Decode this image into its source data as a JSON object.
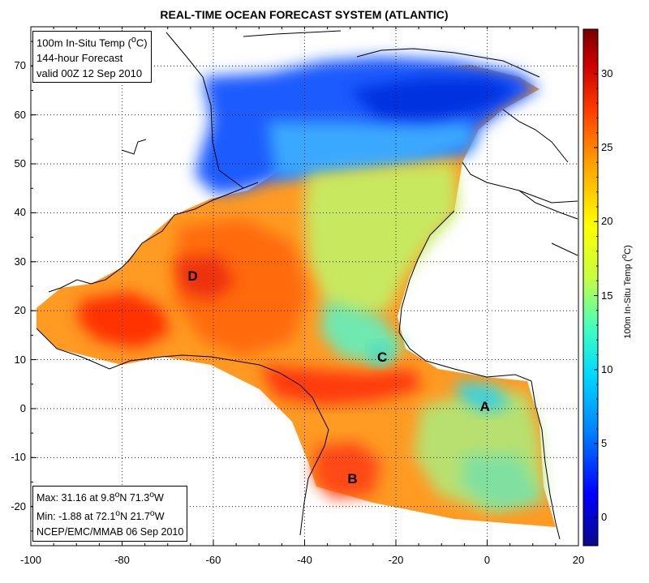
{
  "title": "REAL-TIME OCEAN FORECAST SYSTEM (ATLANTIC)",
  "info_top": {
    "line1_prefix": "100m In-Situ Temp (",
    "line1_sup": "o",
    "line1_suffix": "C)",
    "line2": "144-hour Forecast",
    "line3": "valid 00Z 12 Sep 2010"
  },
  "info_bottom": {
    "max_prefix": "Max: 31.16 at 9.8",
    "max_sup1": "o",
    "max_mid": "N 71.3",
    "max_sup2": "o",
    "max_suffix": "W",
    "min_prefix": "Min: -1.88 at 72.1",
    "min_sup1": "o",
    "min_mid": "N 21.7",
    "min_sup2": "o",
    "min_suffix": "W",
    "credit": "NCEP/EMC/MMAB 06 Sep 2010"
  },
  "map_labels": [
    {
      "text": "A",
      "lon": -0.5,
      "lat": 0.3
    },
    {
      "text": "B",
      "lon": -29.5,
      "lat": -14.5
    },
    {
      "text": "C",
      "lon": -23.0,
      "lat": 10.5
    },
    {
      "text": "D",
      "lon": -64.5,
      "lat": 27.0
    }
  ],
  "x_axis": {
    "ticks": [
      "-100",
      "-80",
      "-60",
      "-40",
      "-20",
      "0",
      "20"
    ],
    "range": [
      -100,
      20
    ]
  },
  "y_axis": {
    "ticks": [
      "-20",
      "-10",
      "0",
      "10",
      "20",
      "30",
      "40",
      "50",
      "60",
      "70"
    ],
    "range": [
      -28,
      78
    ]
  },
  "colorbar": {
    "label_prefix": "100m In-Situ Temp (",
    "label_sup": "o",
    "label_suffix": "C)",
    "ticks": [
      "0",
      "5",
      "10",
      "15",
      "20",
      "25",
      "30"
    ],
    "range": [
      -1.9,
      33
    ],
    "colors": [
      "#0a0a8a",
      "#0000ff",
      "#0080ff",
      "#00d8ff",
      "#40ffc0",
      "#c8ff40",
      "#ffff00",
      "#ffa000",
      "#ff4000",
      "#cc0000",
      "#7a0000"
    ]
  }
}
